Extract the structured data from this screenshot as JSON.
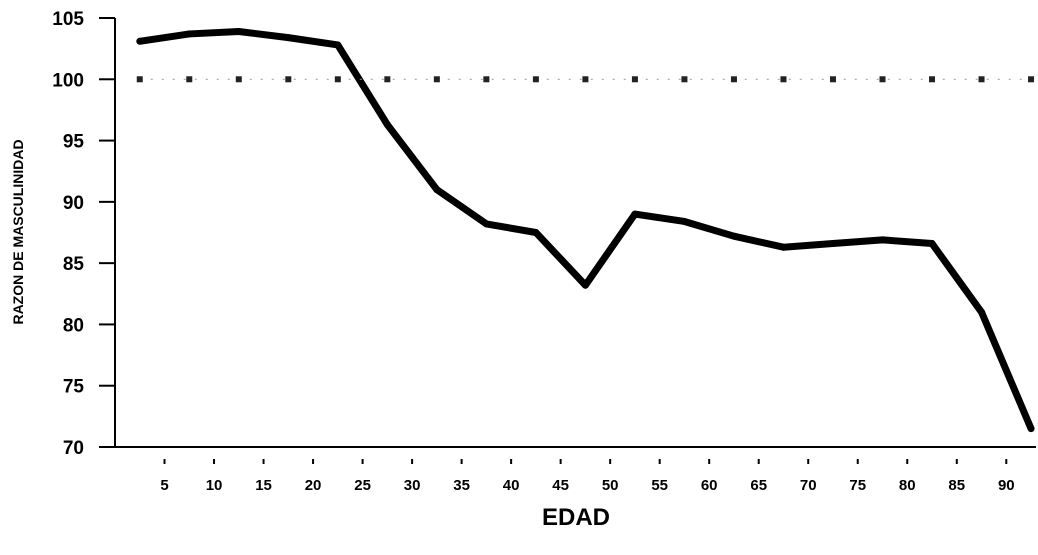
{
  "chart_data": {
    "type": "line",
    "title": "",
    "xlabel": "EDAD",
    "ylabel": "RAZON DE MASCULINIDAD",
    "x_ticks": [
      5,
      10,
      15,
      20,
      25,
      30,
      35,
      40,
      45,
      50,
      55,
      60,
      65,
      70,
      75,
      80,
      85,
      90
    ],
    "y_ticks": [
      70,
      75,
      80,
      85,
      90,
      95,
      100,
      105
    ],
    "xlim": [
      0,
      93
    ],
    "ylim": [
      70,
      105
    ],
    "grid": false,
    "legend": "none",
    "series": [
      {
        "style": "solid-thick",
        "color": "#000000",
        "x": [
          2.5,
          7.5,
          12.5,
          17.5,
          22.5,
          27.5,
          32.5,
          37.5,
          42.5,
          47.5,
          52.5,
          57.5,
          62.5,
          67.5,
          72.5,
          77.5,
          82.5,
          87.5,
          92.5
        ],
        "values": [
          103.1,
          103.7,
          103.9,
          103.4,
          102.8,
          96.3,
          91.0,
          88.2,
          87.5,
          83.2,
          89.0,
          88.4,
          87.2,
          86.3,
          86.6,
          86.9,
          86.6,
          81.0,
          71.5
        ]
      },
      {
        "style": "dotted",
        "color": "#000000",
        "x": [
          2.5,
          7.5,
          12.5,
          17.5,
          22.5,
          27.5,
          32.5,
          37.5,
          42.5,
          47.5,
          52.5,
          57.5,
          62.5,
          67.5,
          72.5,
          77.5,
          82.5,
          87.5,
          92.5
        ],
        "values": [
          100,
          100,
          100,
          100,
          100,
          100,
          100,
          100,
          100,
          100,
          100,
          100,
          100,
          100,
          100,
          100,
          100,
          100,
          100
        ]
      }
    ]
  }
}
